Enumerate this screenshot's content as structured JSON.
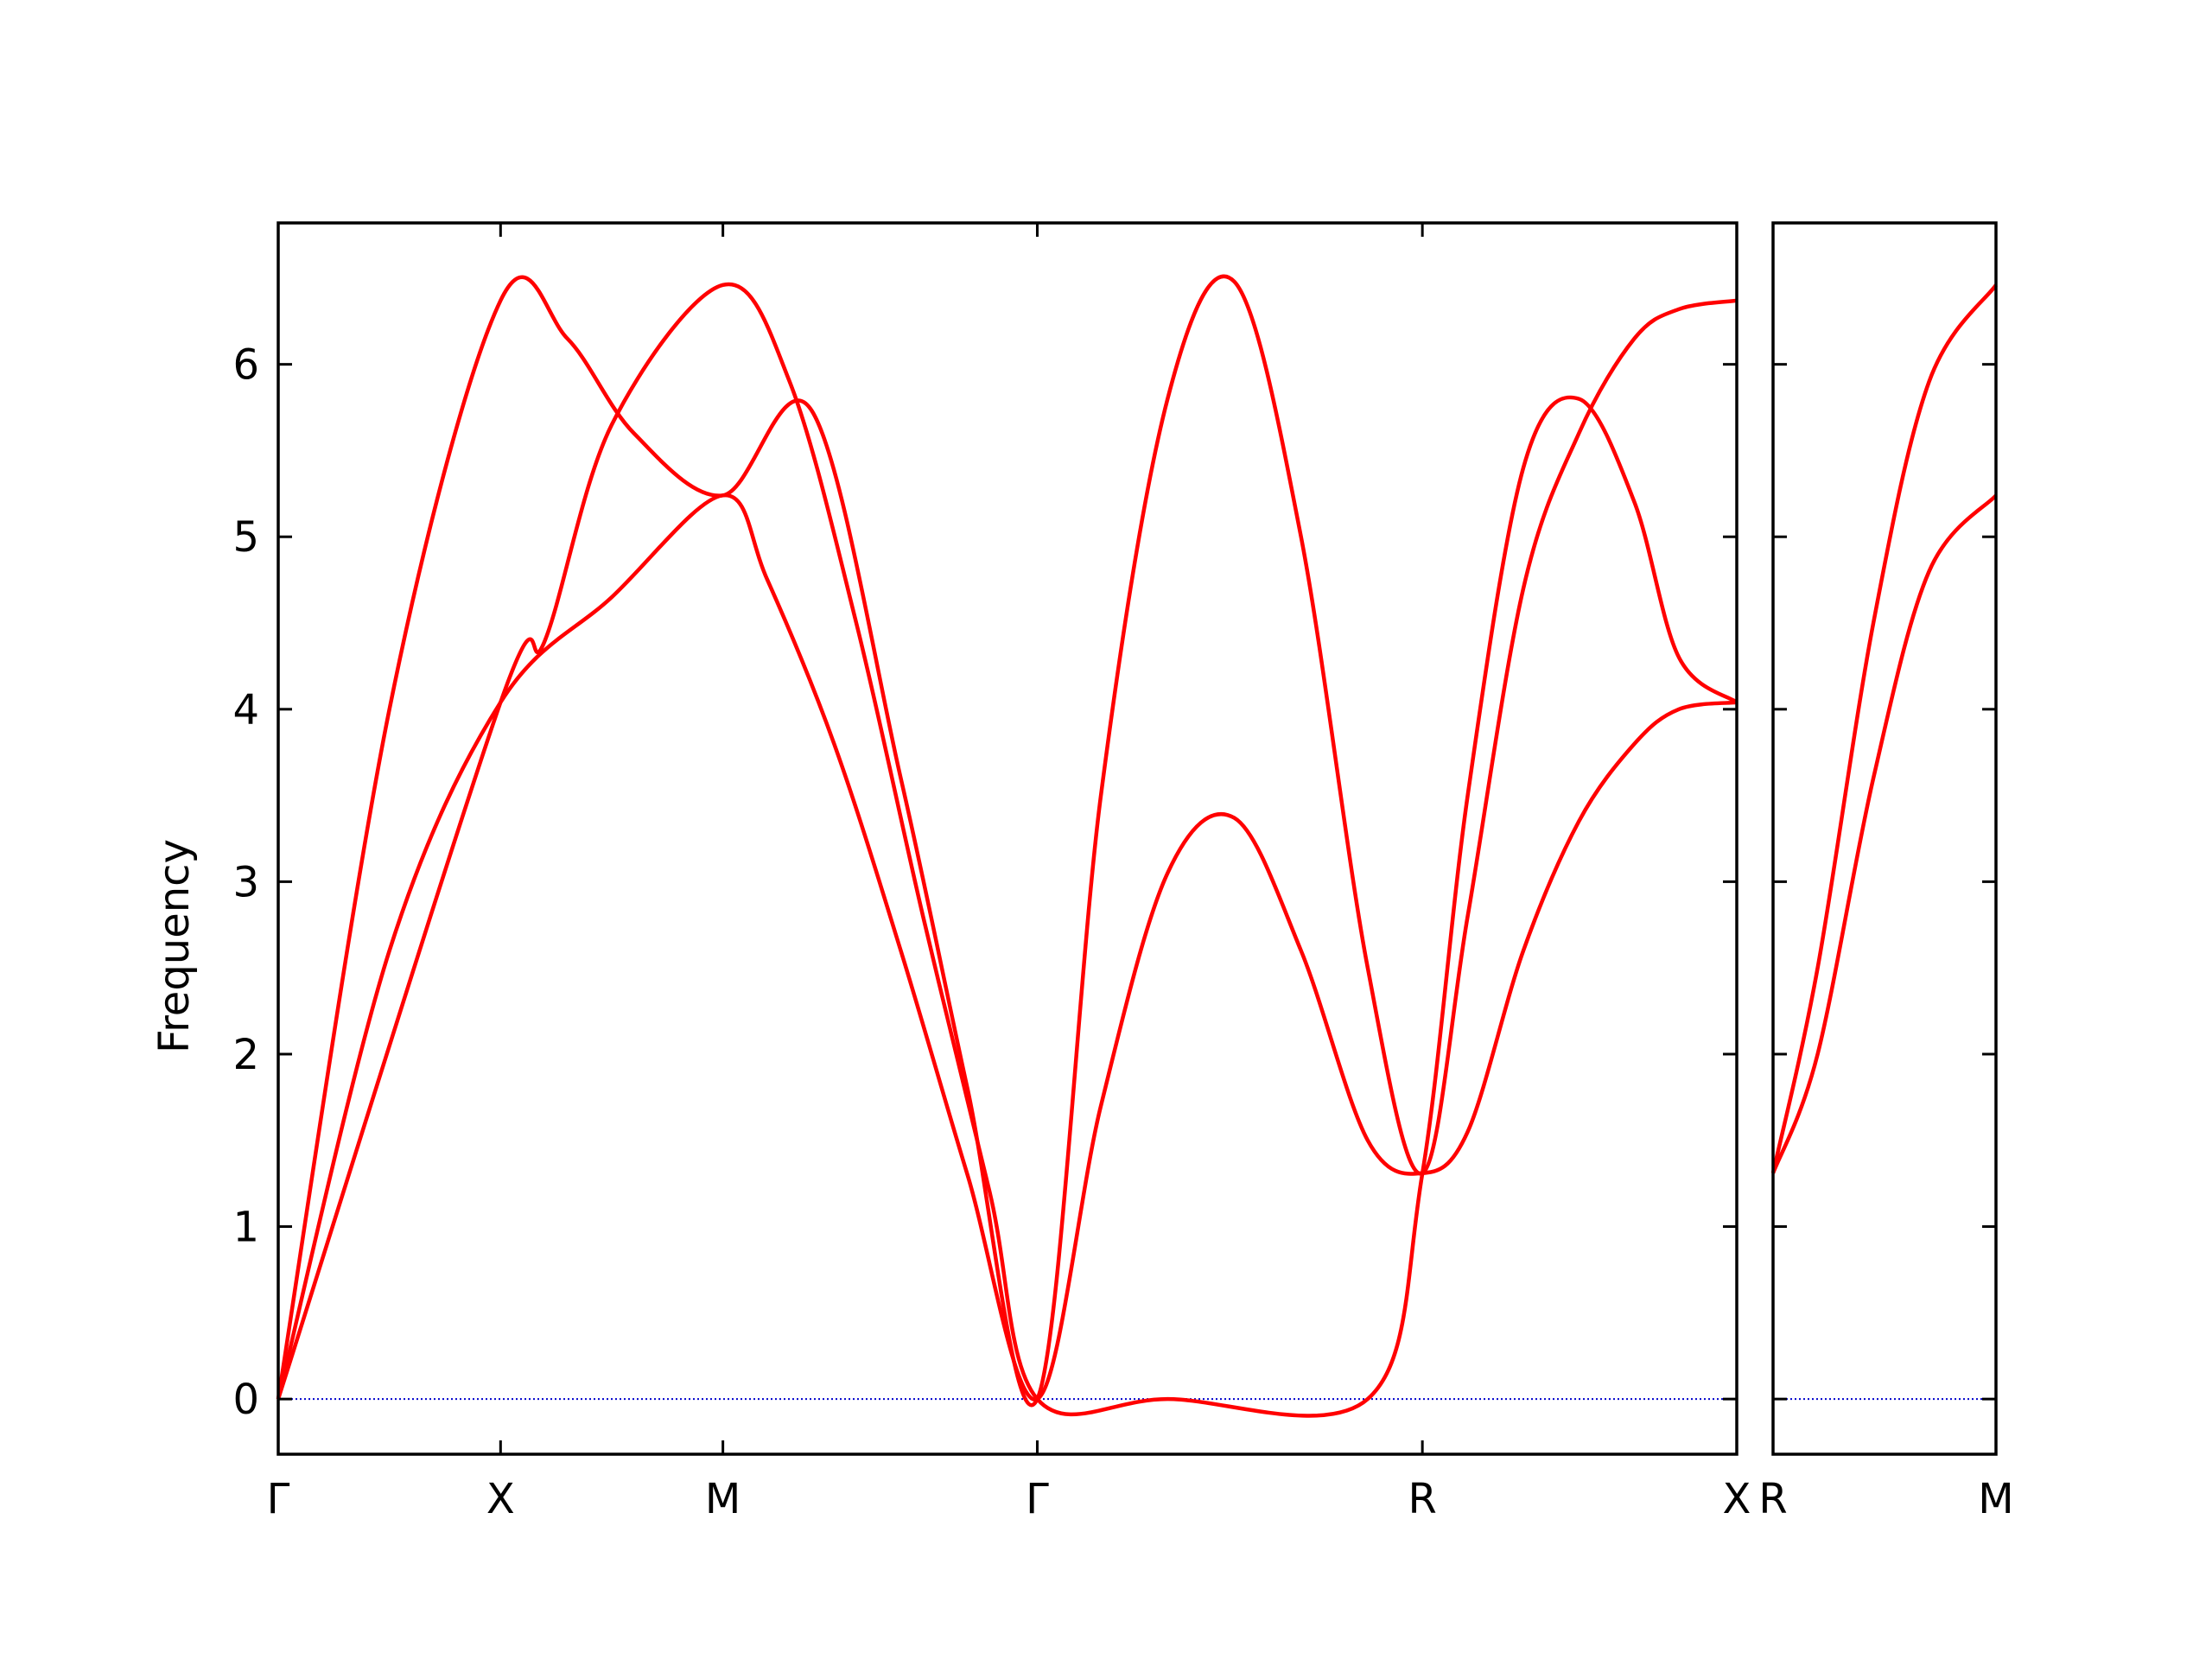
{
  "chart_data": {
    "type": "line",
    "ylabel": "Frequency",
    "ylim": [
      -0.32,
      6.82
    ],
    "yticks": [
      0,
      1,
      2,
      3,
      4,
      5,
      6
    ],
    "band_color": "#ff0000",
    "zero_line_color": "#0000cc",
    "grid": false,
    "panels": [
      {
        "segments": [
          {
            "from": "Γ",
            "to": "X",
            "length": 1.0,
            "ends": [
              [
                0,
                0,
                0
              ],
              [
                4.04,
                4.04,
                6.37
              ]
            ]
          },
          {
            "from": "X",
            "to": "M",
            "length": 1.0,
            "ends": [
              [
                4.04,
                4.04,
                6.37
              ],
              [
                5.24,
                5.24,
                6.46
              ]
            ]
          },
          {
            "from": "M",
            "to": "Γ",
            "length": 1.414,
            "ends": [
              [
                5.24,
                5.24,
                6.46
              ],
              [
                0,
                0,
                0
              ]
            ]
          },
          {
            "from": "Γ",
            "to": "R",
            "length": 1.732,
            "ends": [
              [
                0,
                0,
                0
              ],
              [
                1.31,
                1.31,
                1.31
              ]
            ]
          },
          {
            "from": "R",
            "to": "X",
            "length": 1.414,
            "ends": [
              [
                1.31,
                1.31,
                1.31
              ],
              [
                4.04,
                4.04,
                6.37
              ]
            ]
          }
        ],
        "tick_labels": [
          "Γ",
          "X",
          "M",
          "Γ",
          "R",
          "X"
        ],
        "series": [
          {
            "x": [
              0,
              0.5,
              1.0,
              1.5,
              2.0,
              2.2,
              2.5,
              2.8,
              3.1,
              3.414,
              3.7,
              4.0,
              4.3,
              4.6,
              4.9,
              5.146,
              5.35,
              5.6,
              5.85,
              6.1,
              6.3,
              6.56
            ],
            "y": [
              0,
              2.6,
              4.04,
              4.65,
              5.24,
              4.75,
              3.8,
              2.6,
              1.3,
              0,
              1.7,
              3.05,
              3.37,
              2.6,
              1.5,
              1.31,
              1.55,
              2.6,
              3.35,
              3.8,
              4.0,
              4.04
            ]
          },
          {
            "x": [
              0,
              0.5,
              1.0,
              1.3,
              1.6,
              2.0,
              2.4,
              2.8,
              3.1,
              3.414,
              3.7,
              4.0,
              4.3,
              4.6,
              4.9,
              5.146,
              5.35,
              5.6,
              5.85,
              6.1,
              6.3,
              6.56
            ],
            "y": [
              0,
              4.0,
              6.37,
              6.15,
              5.6,
              5.24,
              5.73,
              3.6,
              1.8,
              0,
              3.5,
              5.8,
              6.48,
              5.0,
              2.5,
              1.31,
              2.8,
              4.7,
              5.6,
              6.15,
              6.32,
              6.37
            ]
          },
          {
            "x": [
              0,
              1.0,
              1.2,
              1.5,
              2.0,
              2.3,
              2.6,
              2.9,
              3.2,
              3.414,
              4.0,
              4.9,
              5.146,
              5.35,
              5.6,
              5.85,
              6.1,
              6.3,
              6.56
            ],
            "y": [
              0,
              4.04,
              4.4,
              5.65,
              6.46,
              5.9,
              4.5,
              2.8,
              1.2,
              0,
              0,
              0,
              1.31,
              3.5,
              5.4,
              5.8,
              5.2,
              4.3,
              4.04
            ]
          }
        ]
      },
      {
        "segments": [
          {
            "from": "R",
            "to": "M",
            "length": 1.0,
            "ends": [
              [
                1.31,
                1.31
              ],
              [
                5.24,
                6.46
              ]
            ]
          }
        ],
        "tick_labels": [
          "R",
          "M"
        ],
        "series": [
          {
            "x": [
              0,
              0.2,
              0.45,
              0.7,
              1.0
            ],
            "y": [
              1.31,
              2.0,
              3.6,
              4.8,
              5.24
            ]
          },
          {
            "x": [
              0,
              0.2,
              0.45,
              0.7,
              1.0
            ],
            "y": [
              1.31,
              2.5,
              4.5,
              5.9,
              6.46
            ]
          }
        ]
      }
    ]
  }
}
